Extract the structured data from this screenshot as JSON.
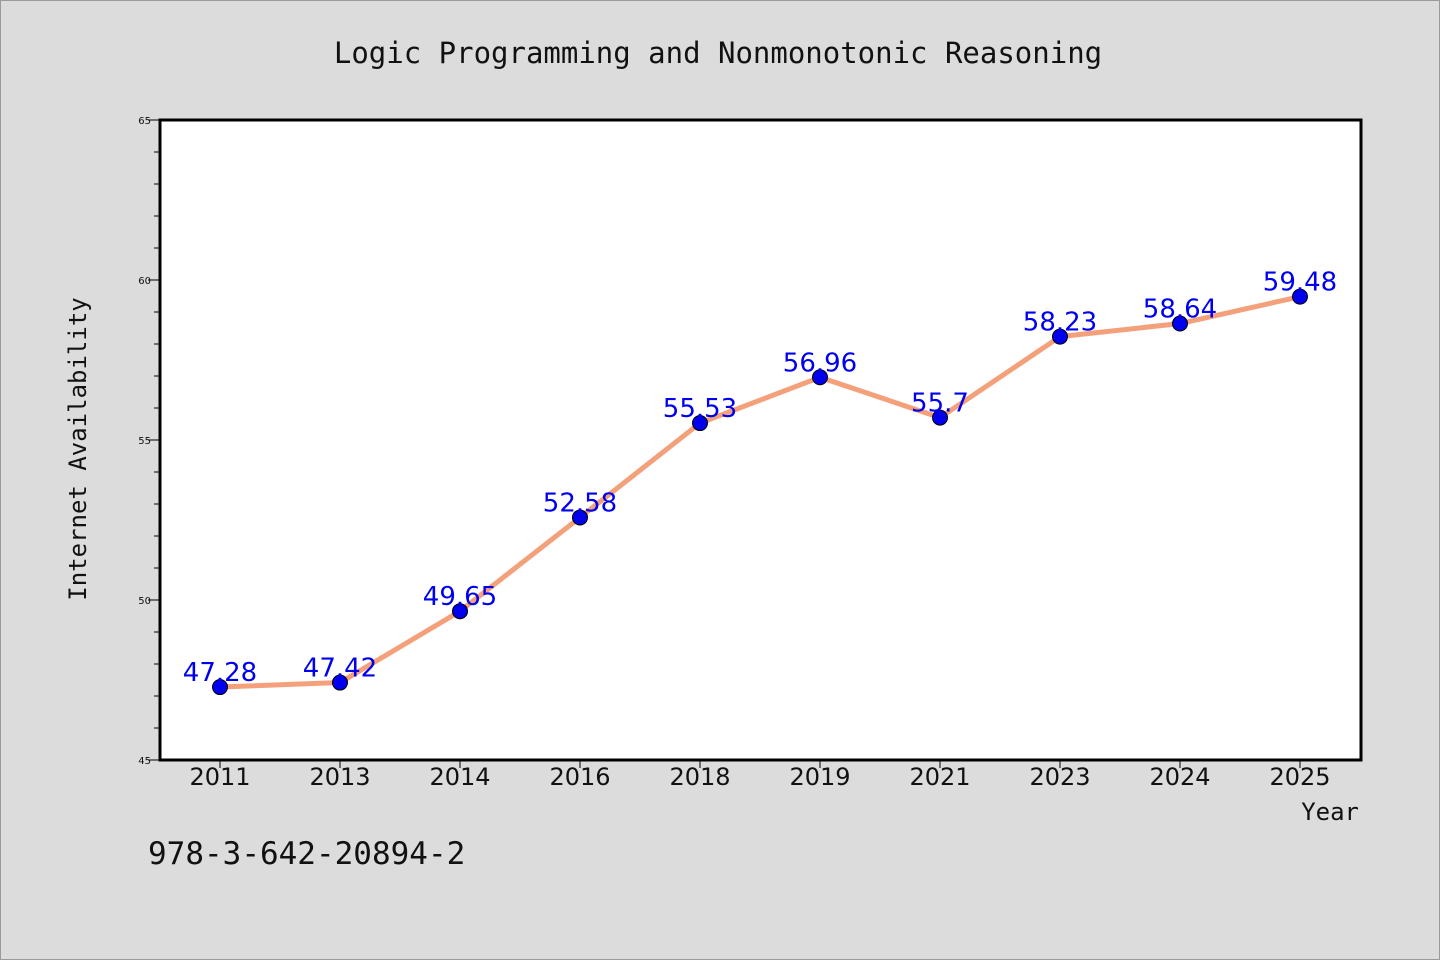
{
  "chart_data": {
    "type": "line",
    "title": "Logic Programming and Nonmonotonic Reasoning",
    "xlabel": "Year",
    "ylabel": "Internet Availability",
    "categories": [
      "2011",
      "2013",
      "2014",
      "2016",
      "2018",
      "2019",
      "2021",
      "2023",
      "2024",
      "2025"
    ],
    "values": [
      47.28,
      47.42,
      49.65,
      52.58,
      55.53,
      56.96,
      55.7,
      58.23,
      58.64,
      59.48
    ],
    "data_labels": [
      "47.28",
      "47.42",
      "49.65",
      "52.58",
      "55.53",
      "56.96",
      "55.7",
      "58.23",
      "58.64",
      "59.48"
    ],
    "ylim": [
      45,
      65
    ],
    "y_major_ticks": [
      45,
      50,
      55,
      60,
      65
    ],
    "y_minor_step": 1,
    "grid": false,
    "line_color": "#f4a07a",
    "marker_color": "#0000ee",
    "label_color": "#0000ee"
  },
  "footer": {
    "isbn": "978-3-642-20894-2"
  }
}
